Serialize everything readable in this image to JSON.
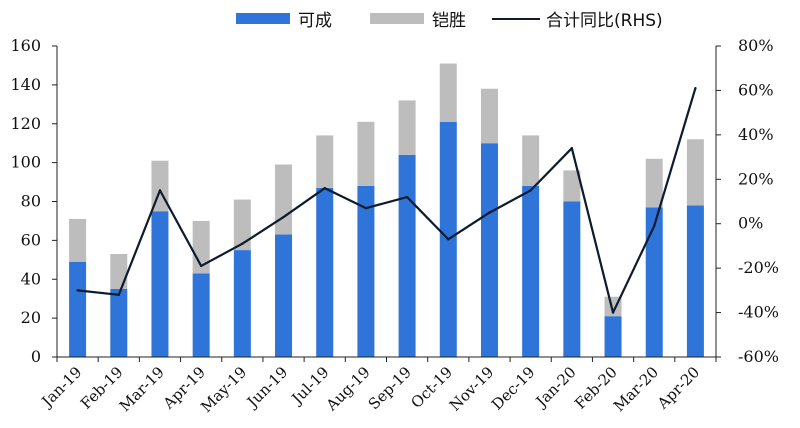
{
  "chart_data": {
    "type": "bar",
    "categories": [
      "Jan-19",
      "Feb-19",
      "Mar-19",
      "Apr-19",
      "May-19",
      "Jun-19",
      "Jul-19",
      "Aug-19",
      "Sep-19",
      "Oct-19",
      "Nov-19",
      "Dec-19",
      "Jan-20",
      "Feb-20",
      "Mar-20",
      "Apr-20"
    ],
    "series": [
      {
        "name": "可成",
        "type": "stacked-bar",
        "color": "#2f74d8",
        "values": [
          49,
          35,
          75,
          43,
          55,
          63,
          87,
          88,
          104,
          121,
          110,
          88,
          80,
          21,
          77,
          78
        ]
      },
      {
        "name": "铠胜",
        "type": "stacked-bar",
        "color": "#bdbdbd",
        "values": [
          22,
          18,
          26,
          27,
          26,
          36,
          27,
          33,
          28,
          30,
          28,
          26,
          16,
          10,
          25,
          34
        ]
      },
      {
        "name": "合计同比(RHS)",
        "type": "line",
        "axis": "right",
        "color": "#0d1b2e",
        "values": [
          -30,
          -32,
          15,
          -19,
          -9,
          3,
          16,
          7,
          12,
          -7,
          5,
          15,
          34,
          -40,
          -1,
          61
        ]
      }
    ],
    "y_left": {
      "ylim": [
        0,
        160
      ],
      "ticks": [
        "0",
        "20",
        "40",
        "60",
        "80",
        "100",
        "120",
        "140",
        "160"
      ]
    },
    "y_right": {
      "ylim": [
        -60,
        80
      ],
      "ticks": [
        "-60%",
        "-40%",
        "-20%",
        "0%",
        "20%",
        "40%",
        "60%",
        "80%"
      ]
    },
    "legend": "top",
    "grid": false
  }
}
